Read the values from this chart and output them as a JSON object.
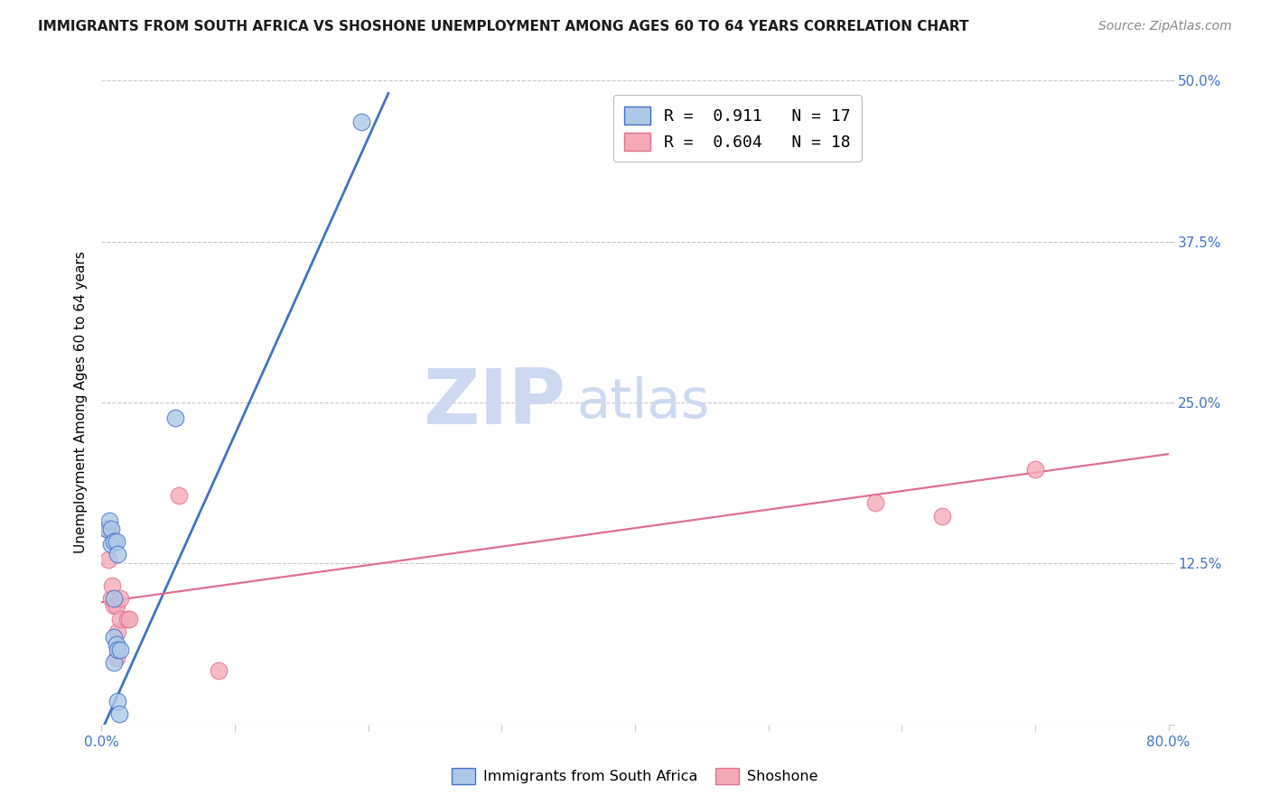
{
  "title": "IMMIGRANTS FROM SOUTH AFRICA VS SHOSHONE UNEMPLOYMENT AMONG AGES 60 TO 64 YEARS CORRELATION CHART",
  "source": "Source: ZipAtlas.com",
  "ylabel": "Unemployment Among Ages 60 to 64 years",
  "xlim": [
    0.0,
    0.8
  ],
  "ylim": [
    0.0,
    0.5
  ],
  "xticks": [
    0.0,
    0.1,
    0.2,
    0.3,
    0.4,
    0.5,
    0.6,
    0.7,
    0.8
  ],
  "yticks": [
    0.0,
    0.125,
    0.25,
    0.375,
    0.5
  ],
  "ytick_labels_right": [
    "",
    "12.5%",
    "25.0%",
    "37.5%",
    "50.0%"
  ],
  "legend_r1": "R =  0.911   N = 17",
  "legend_r2": "R =  0.604   N = 18",
  "blue_color": "#adc8e8",
  "pink_color": "#f5aab8",
  "blue_line_color": "#4472c4",
  "pink_line_color": "#e07090",
  "blue_scatter": [
    [
      0.004,
      0.152
    ],
    [
      0.006,
      0.158
    ],
    [
      0.007,
      0.152
    ],
    [
      0.007,
      0.14
    ],
    [
      0.009,
      0.142
    ],
    [
      0.009,
      0.098
    ],
    [
      0.009,
      0.068
    ],
    [
      0.009,
      0.048
    ],
    [
      0.011,
      0.142
    ],
    [
      0.011,
      0.062
    ],
    [
      0.012,
      0.132
    ],
    [
      0.012,
      0.058
    ],
    [
      0.012,
      0.018
    ],
    [
      0.013,
      0.008
    ],
    [
      0.014,
      0.058
    ],
    [
      0.055,
      0.238
    ],
    [
      0.195,
      0.468
    ]
  ],
  "pink_scatter": [
    [
      0.004,
      0.152
    ],
    [
      0.005,
      0.128
    ],
    [
      0.006,
      0.152
    ],
    [
      0.007,
      0.098
    ],
    [
      0.008,
      0.108
    ],
    [
      0.009,
      0.092
    ],
    [
      0.011,
      0.092
    ],
    [
      0.011,
      0.052
    ],
    [
      0.012,
      0.072
    ],
    [
      0.014,
      0.098
    ],
    [
      0.014,
      0.082
    ],
    [
      0.019,
      0.082
    ],
    [
      0.021,
      0.082
    ],
    [
      0.058,
      0.178
    ],
    [
      0.088,
      0.042
    ],
    [
      0.58,
      0.172
    ],
    [
      0.63,
      0.162
    ],
    [
      0.7,
      0.198
    ]
  ],
  "blue_trend_x": [
    0.0,
    0.215
  ],
  "blue_trend_y": [
    -0.005,
    0.49
  ],
  "pink_trend_x": [
    0.0,
    0.8
  ],
  "pink_trend_y": [
    0.095,
    0.21
  ],
  "watermark_zip": "ZIP",
  "watermark_atlas": "atlas",
  "watermark_color": "#ccd9f0",
  "background_color": "#ffffff",
  "grid_color": "#c8c8c8",
  "title_color": "#1a1a1a",
  "source_color": "#888888",
  "label_color": "#4472c4",
  "tick_color": "#4472c4"
}
